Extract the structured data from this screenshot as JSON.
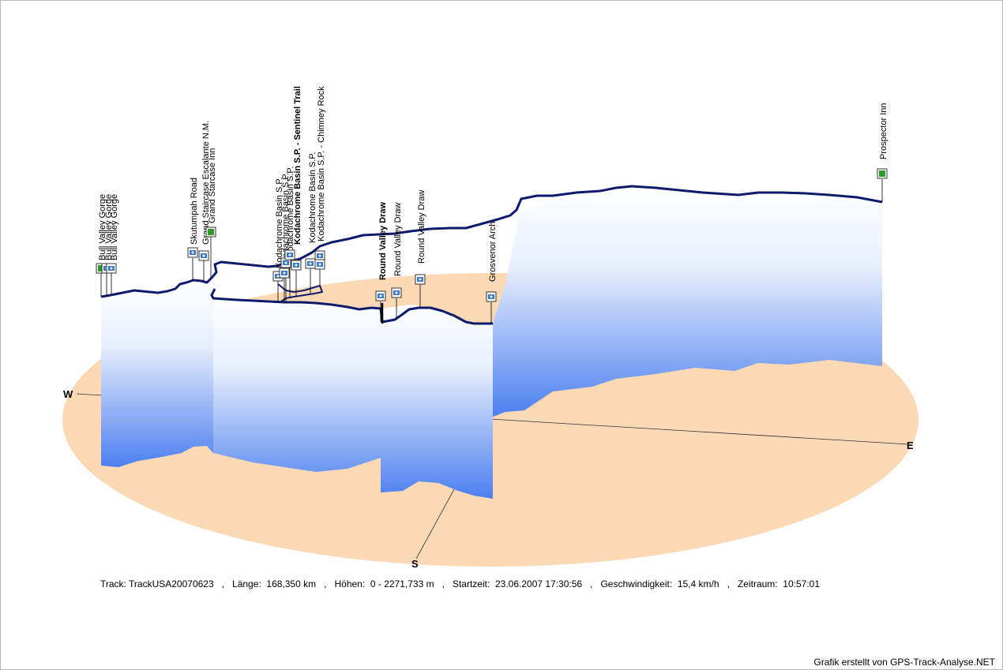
{
  "compass": {
    "west": "W",
    "east": "E",
    "south": "S"
  },
  "info": {
    "track_label": "Track:",
    "track_name": "TrackUSA20070623",
    "length_label": "Länge:",
    "length_value": "168,350 km",
    "height_label": "Höhen:",
    "height_value": "0 - 2271,733 m",
    "start_label": "Startzeit:",
    "start_value": "23.06.2007 17:30:56",
    "speed_label": "Geschwindigkeit:",
    "speed_value": "15,4 km/h",
    "period_label": "Zeitraum:",
    "period_value": "10:57:01",
    "separator": ","
  },
  "credit": "Grafik erstellt von GPS-Track-Analyse.NET",
  "waypoints": [
    {
      "label": "Bull Valley Gorge",
      "icon": "flag-icon"
    },
    {
      "label": "Bull Valley Gorge",
      "icon": "camera-icon"
    },
    {
      "label": "Bull Valley Gorge",
      "icon": "camera-icon"
    },
    {
      "label": "Skutumpah Road",
      "icon": "camera-icon"
    },
    {
      "label": "Grand Staircase Escalante N.M.",
      "icon": "camera-icon"
    },
    {
      "label": "Grand Starcase Inn",
      "icon": "flag-icon"
    },
    {
      "label": "Kodachrome Basin S.P.",
      "icon": "camera-icon"
    },
    {
      "label": "Kodachrome Basin S.P.",
      "icon": "camera-icon"
    },
    {
      "label": "Kodachrome Basin S.P.",
      "icon": "camera-icon"
    },
    {
      "label": "Kodachrome Basin S.P. - Sentinel Trail",
      "icon": "camera-icon"
    },
    {
      "label": "Kodachrome Basin S.P.",
      "icon": "camera-icon"
    },
    {
      "label": "Kodachrome Basin S.P. - Chimney Rock",
      "icon": "camera-icon"
    },
    {
      "label": "Round Valley Draw",
      "icon": "camera-icon"
    },
    {
      "label": "Round Valley Draw",
      "icon": "camera-icon"
    },
    {
      "label": "Round Valley Draw",
      "icon": "camera-icon"
    },
    {
      "label": "Grosvenor Arch",
      "icon": "camera-icon"
    },
    {
      "label": "Prospector Inn",
      "icon": "flag-icon"
    }
  ],
  "colors": {
    "ground": "#fbd9b5",
    "track": "#0e1a6e",
    "wall_top": "#ffffff",
    "wall_bottom": "#4b7ff0",
    "flag": "#2c9a2c",
    "camera": "#3a78c8"
  }
}
